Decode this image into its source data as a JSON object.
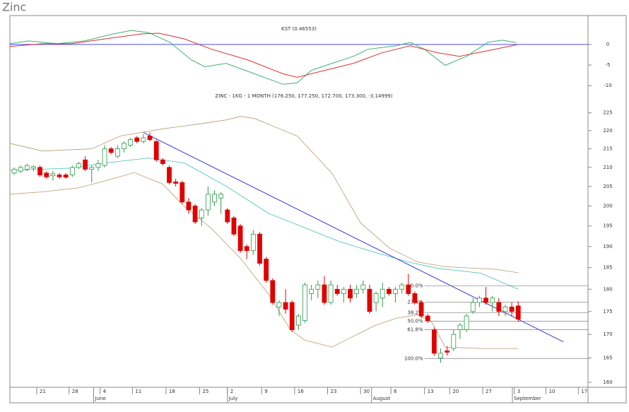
{
  "header": {
    "title": "Zinc"
  },
  "chart_data": [
    {
      "type": "line",
      "title": "KST (0.46553)",
      "ylim": [
        -11.5,
        7
      ],
      "yticks": [
        0,
        -5,
        -10
      ],
      "reference_line": {
        "value": 0,
        "color": "#4a4aee"
      },
      "series": [
        {
          "color": "#3cb371",
          "x": [
            -0.7,
            2.2,
            6.6,
            10.9,
            15.3,
            18.1,
            20.8,
            24.1,
            27.4,
            29.5,
            32.8,
            37.2,
            41.6,
            43.8,
            46,
            49.2,
            52.5,
            54.7,
            59.1,
            61.3,
            63.5,
            66.7,
            70,
            73.3,
            75.5,
            77.7
          ],
          "values": [
            0.17,
            0.85,
            0.17,
            0.85,
            2.54,
            3.39,
            2.88,
            0.51,
            -3.73,
            -5.42,
            -4.58,
            -7.12,
            -9.66,
            -9.32,
            -6.27,
            -4.58,
            -2.88,
            -1.19,
            -0.34,
            0.51,
            -1.19,
            -5.08,
            -2.88,
            0.51,
            1.02,
            0.47
          ]
        },
        {
          "color": "#e03030",
          "x": [
            -0.7,
            4.4,
            8.8,
            14.2,
            19.7,
            22.4,
            26.3,
            30.6,
            36.1,
            41.6,
            43.8,
            48.1,
            52.5,
            56.9,
            61.3,
            65.6,
            68.9,
            73.3,
            78
          ],
          "values": [
            -0.51,
            0.17,
            0.17,
            1.36,
            2.54,
            2.71,
            1.36,
            -1.19,
            -3.73,
            -7.12,
            -7.97,
            -6.27,
            -4.58,
            -2.03,
            -0.34,
            -2.03,
            -2.88,
            -1.53,
            0
          ]
        }
      ]
    },
    {
      "type": "candlestick",
      "title": "ZINC - 1KG - 1 MONTH (176.250, 177.250, 172.700, 173.300, -3.14999)",
      "log_scale": true,
      "ylim": [
        159,
        229
      ],
      "yticks": [
        160,
        165,
        170,
        175,
        180,
        185,
        190,
        195,
        200,
        205,
        210,
        215,
        220,
        225
      ],
      "xlim": [
        -0.66,
        88.8
      ],
      "xticks": [
        {
          "value": 3.5,
          "label": "21"
        },
        {
          "value": 8.5,
          "label": "28"
        },
        {
          "value": 13.3,
          "label": "4"
        },
        {
          "value": 18.3,
          "label": "11"
        },
        {
          "value": 23.5,
          "label": "18"
        },
        {
          "value": 28.7,
          "label": "25"
        },
        {
          "value": 33,
          "label": "2"
        },
        {
          "value": 38.3,
          "label": "9"
        },
        {
          "value": 43.4,
          "label": "16"
        },
        {
          "value": 48.5,
          "label": "23"
        },
        {
          "value": 53.6,
          "label": "30"
        },
        {
          "value": 58.3,
          "label": "6"
        },
        {
          "value": 63.5,
          "label": "13"
        },
        {
          "value": 67.4,
          "label": "20"
        },
        {
          "value": 72.5,
          "label": "27"
        },
        {
          "value": 77.4,
          "label": "3"
        },
        {
          "value": 82.3,
          "label": "10"
        },
        {
          "value": 87.3,
          "label": "17"
        }
      ],
      "months": [
        {
          "value": 12.3,
          "label": "June"
        },
        {
          "value": 33,
          "label": "July"
        },
        {
          "value": 55.3,
          "label": "August"
        },
        {
          "value": 77.1,
          "label": "September"
        }
      ],
      "up_color": "#2e9a4a",
      "down_color": "#e00000",
      "x": [
        0,
        1,
        2,
        3,
        4,
        5,
        6,
        7,
        8,
        9,
        10,
        11,
        12,
        13,
        14,
        15,
        16,
        17,
        18,
        19,
        20,
        21,
        22,
        23,
        24,
        25,
        26,
        27,
        28,
        29,
        30,
        31,
        32,
        33,
        34,
        35,
        36,
        37,
        38,
        39,
        40,
        41,
        42,
        43,
        44,
        45,
        46,
        47,
        48,
        49,
        50,
        51,
        52,
        53,
        54,
        55,
        56,
        57,
        58,
        59,
        60,
        61,
        62,
        63,
        64,
        65,
        66,
        67,
        68,
        69,
        70,
        71,
        72,
        73,
        74,
        75,
        76,
        77,
        78
      ],
      "open": [
        208.5,
        209,
        209.5,
        209.8,
        210,
        208.5,
        207.8,
        208,
        208,
        208,
        210,
        212,
        209.5,
        210,
        210.5,
        215,
        213,
        215,
        216,
        218,
        217,
        218.5,
        217,
        212,
        210,
        206.2,
        206,
        201,
        200,
        197,
        199,
        201,
        202,
        199,
        197,
        195,
        190,
        189,
        193,
        187,
        182,
        176,
        177,
        177,
        172,
        173,
        179,
        180,
        181,
        177,
        180,
        179,
        180,
        179,
        180,
        180,
        177,
        178,
        180,
        179,
        180,
        181,
        179,
        177,
        174,
        171,
        165,
        166.5,
        167,
        171,
        171,
        175,
        177,
        178,
        177,
        177,
        175,
        176,
        176.25
      ],
      "high": [
        210,
        210.5,
        211,
        210.5,
        210.5,
        209,
        209,
        208.5,
        208.5,
        210.5,
        211.5,
        213,
        210.5,
        212,
        216,
        215.5,
        216,
        217,
        218,
        218.5,
        219,
        219.5,
        217.5,
        212.5,
        210.5,
        207,
        206.5,
        202,
        200.5,
        199.5,
        205,
        204,
        203.5,
        199.5,
        197.5,
        195.5,
        190.5,
        194,
        193.5,
        187.5,
        182.5,
        177.5,
        180,
        177.5,
        174.5,
        181.5,
        181,
        182,
        183,
        182,
        181,
        180.5,
        181,
        181,
        182,
        181,
        179.5,
        181.5,
        180.5,
        180.5,
        181.5,
        183.5,
        179.5,
        177.5,
        174.5,
        171.5,
        167,
        167.5,
        171,
        172.5,
        174.5,
        178,
        178.5,
        180.5,
        178.5,
        178,
        176.5,
        177,
        177.25
      ],
      "low": [
        208,
        208.5,
        209,
        209,
        207.5,
        207,
        206.5,
        207,
        207,
        207.5,
        209.5,
        209,
        206,
        209,
        210,
        213.5,
        212.5,
        214,
        215.5,
        216.5,
        216.5,
        217,
        211.5,
        210.5,
        205.5,
        205,
        200.5,
        198,
        195.5,
        195,
        197.5,
        200,
        198,
        195.5,
        192.5,
        188.5,
        187,
        188,
        185.5,
        181.5,
        176.5,
        174,
        174.5,
        170.5,
        171,
        172.5,
        177.5,
        178,
        176.5,
        176.5,
        178.5,
        177,
        177,
        178,
        179,
        174.5,
        175,
        176,
        178.5,
        177,
        179,
        178.5,
        176.5,
        173.5,
        172.5,
        165.5,
        164,
        165.5,
        166.5,
        169,
        170.5,
        174.5,
        176,
        176.5,
        175,
        174,
        174,
        174,
        172.7
      ],
      "close": [
        209.5,
        210,
        210.5,
        210.2,
        208,
        207.5,
        208.3,
        207.5,
        207.4,
        210,
        211,
        209.5,
        210,
        211,
        215,
        214,
        215,
        216.5,
        217.5,
        217,
        218,
        217.5,
        212,
        211,
        206,
        205.8,
        201,
        199,
        196,
        199,
        203,
        203,
        203,
        196,
        193,
        189,
        189,
        193,
        186,
        182,
        177,
        177,
        175.5,
        171,
        174,
        181,
        180,
        181,
        177,
        181,
        179,
        180,
        178,
        180,
        181,
        175,
        179,
        180,
        179,
        180,
        181,
        179,
        177,
        174,
        173,
        166,
        166,
        166.2,
        170,
        172,
        174,
        177,
        178,
        177,
        178,
        175,
        176,
        175,
        173.3
      ],
      "upper_band": {
        "color": "#b89a72",
        "x": [
          -0.7,
          4.4,
          12,
          16.4,
          23,
          28.4,
          32.8,
          35,
          37.2,
          43.8,
          49.2,
          53.6,
          58,
          62.4,
          66.7,
          74.4,
          78
        ],
        "values": [
          216.5,
          214.4,
          215,
          218.5,
          220.5,
          221.8,
          223,
          224,
          223.4,
          218.5,
          208.4,
          195.8,
          189.7,
          186.3,
          185.2,
          184.6,
          183.8
        ]
      },
      "lower_band": {
        "color": "#b89a72",
        "x": [
          -0.7,
          4.4,
          9.8,
          13.1,
          18.6,
          23,
          26.3,
          30.6,
          35,
          39.4,
          42.7,
          44.9,
          49.2,
          52.5,
          55.8,
          59.1,
          62.4,
          64.6,
          66.7,
          72.2,
          78
        ],
        "values": [
          203,
          203.6,
          204.6,
          206,
          208.6,
          205.6,
          199.9,
          194.3,
          187.2,
          178.8,
          171.1,
          168.8,
          167.3,
          169.6,
          171.9,
          173.5,
          174.3,
          172.7,
          167.3,
          167,
          167
        ]
      },
      "moving_average": {
        "color": "#3cc0b0",
        "x": [
          -0.7,
          8.8,
          14.2,
          20.8,
          26.3,
          32.8,
          39.4,
          44.9,
          50.3,
          55.8,
          61.3,
          65.6,
          72.2,
          78
        ],
        "values": [
          209.2,
          209.8,
          211.2,
          212.5,
          211.2,
          205.1,
          198.1,
          194.6,
          191.2,
          188.6,
          186.2,
          184.8,
          183.7,
          180
        ]
      },
      "trendline": {
        "color": "#3636dd",
        "x": [
          20,
          85
        ],
        "values": [
          219.5,
          168.4
        ]
      },
      "fibonacci": {
        "color": "#808080",
        "x_start": 63.5,
        "levels": [
          180.8,
          177.05,
          174.7,
          172.85,
          171,
          164.9
        ],
        "labels": [
          "0.0%",
          "23.6%",
          "38.2%",
          "50.0%",
          "61.8%",
          "100.0%"
        ]
      }
    }
  ]
}
